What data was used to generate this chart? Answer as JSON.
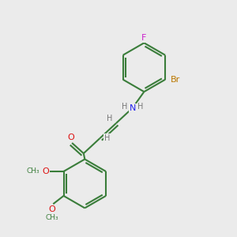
{
  "bg_color": "#ebebeb",
  "bond_color": "#3a7d3a",
  "atom_colors": {
    "F": "#cc22cc",
    "Br": "#bb7700",
    "N": "#2222ee",
    "O": "#dd1111",
    "H": "#777777",
    "C": "#3a7d3a"
  }
}
